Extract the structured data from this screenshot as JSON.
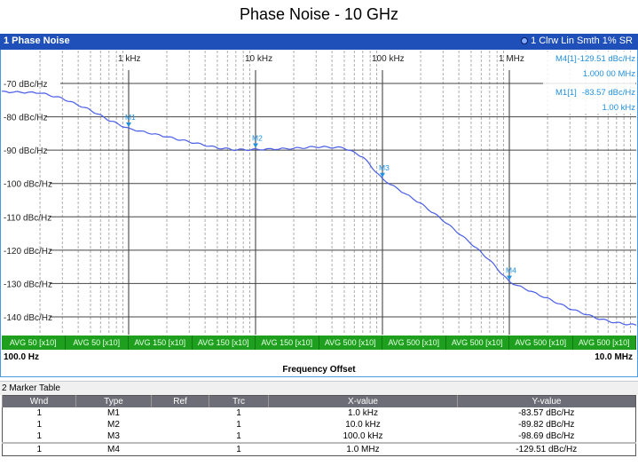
{
  "title": "Phase Noise - 10 GHz",
  "window1": {
    "name": "1 Phase Noise",
    "trace_info": "1 Clrw Lin Smth 1% SR",
    "trace_color": "#4a5ee8",
    "marker_color": "#1e90e0",
    "x_start": "100.0 Hz",
    "x_stop": "10.0 MHz",
    "x_axis_label": "Frequency Offset",
    "decade_labels": [
      "1 kHz",
      "10 kHz",
      "100 kHz",
      "1 MHz"
    ],
    "y_labels": [
      "-70 dBc/Hz",
      "-80 dBc/Hz",
      "-90 dBc/Hz",
      "-100 dBc/Hz",
      "-110 dBc/Hz",
      "-120 dBc/Hz",
      "-130 dBc/Hz",
      "-140 dBc/Hz"
    ],
    "marker_info": [
      {
        "name": "M4[1]",
        "y": "-129.51 dBc/Hz",
        "x": "1.000 00 MHz"
      },
      {
        "name": "M1[1]",
        "y": "-83.57 dBc/Hz",
        "x": "1.00 kHz"
      }
    ],
    "avg_segments": [
      "AVG 50 [x10]",
      "AVG 50 [x10]",
      "AVG 150 [x10]",
      "AVG 150 [x10]",
      "AVG 150 [x10]",
      "AVG 500 [x10]",
      "AVG 500 [x10]",
      "AVG 500 [x10]",
      "AVG 500 [x10]",
      "AVG 500 [x10]"
    ]
  },
  "marker_table": {
    "title": "2 Marker Table",
    "columns": [
      "Wnd",
      "Type",
      "Ref",
      "Trc",
      "X-value",
      "Y-value"
    ],
    "rows": [
      [
        "1",
        "M1",
        "",
        "1",
        "1.0 kHz",
        "-83.57 dBc/Hz"
      ],
      [
        "1",
        "M2",
        "",
        "1",
        "10.0 kHz",
        "-89.82 dBc/Hz"
      ],
      [
        "1",
        "M3",
        "",
        "1",
        "100.0 kHz",
        "-98.69 dBc/Hz"
      ],
      [
        "1",
        "M4",
        "",
        "1",
        "1.0 MHz",
        "-129.51 dBc/Hz"
      ]
    ]
  },
  "chart_data": {
    "type": "line",
    "title": "Phase Noise - 10 GHz",
    "xlabel": "Frequency Offset",
    "ylabel": "dBc/Hz",
    "xscale": "log",
    "xlim": [
      100,
      10000000
    ],
    "ylim": [
      -146,
      -64
    ],
    "grid": true,
    "x_tick_labels": [
      "1 kHz",
      "10 kHz",
      "100 kHz",
      "1 MHz"
    ],
    "y_tick_labels": [
      "-70 dBc/Hz",
      "-80 dBc/Hz",
      "-90 dBc/Hz",
      "-100 dBc/Hz",
      "-110 dBc/Hz",
      "-120 dBc/Hz",
      "-130 dBc/Hz",
      "-140 dBc/Hz"
    ],
    "series": [
      {
        "name": "Trace 1 (Clrw Lin Smth 1% SR)",
        "x": [
          100,
          200,
          300,
          500,
          700,
          1000,
          2000,
          3000,
          5000,
          7000,
          10000,
          20000,
          30000,
          50000,
          70000,
          100000,
          200000,
          300000,
          500000,
          700000,
          1000000,
          2000000,
          3000000,
          5000000,
          7000000,
          10000000
        ],
        "y": [
          -72.5,
          -72.8,
          -74.5,
          -78.0,
          -81.0,
          -83.57,
          -86.0,
          -87.5,
          -89.3,
          -89.9,
          -89.82,
          -89.5,
          -89.0,
          -89.3,
          -92.0,
          -98.69,
          -106.0,
          -111.0,
          -118.0,
          -123.0,
          -129.51,
          -134.5,
          -137.5,
          -140.5,
          -141.8,
          -142.5
        ]
      }
    ],
    "markers": [
      {
        "name": "M1",
        "x": 1000,
        "y": -83.57
      },
      {
        "name": "M2",
        "x": 10000,
        "y": -89.82
      },
      {
        "name": "M3",
        "x": 100000,
        "y": -98.69
      },
      {
        "name": "M4",
        "x": 1000000,
        "y": -129.51
      }
    ]
  }
}
